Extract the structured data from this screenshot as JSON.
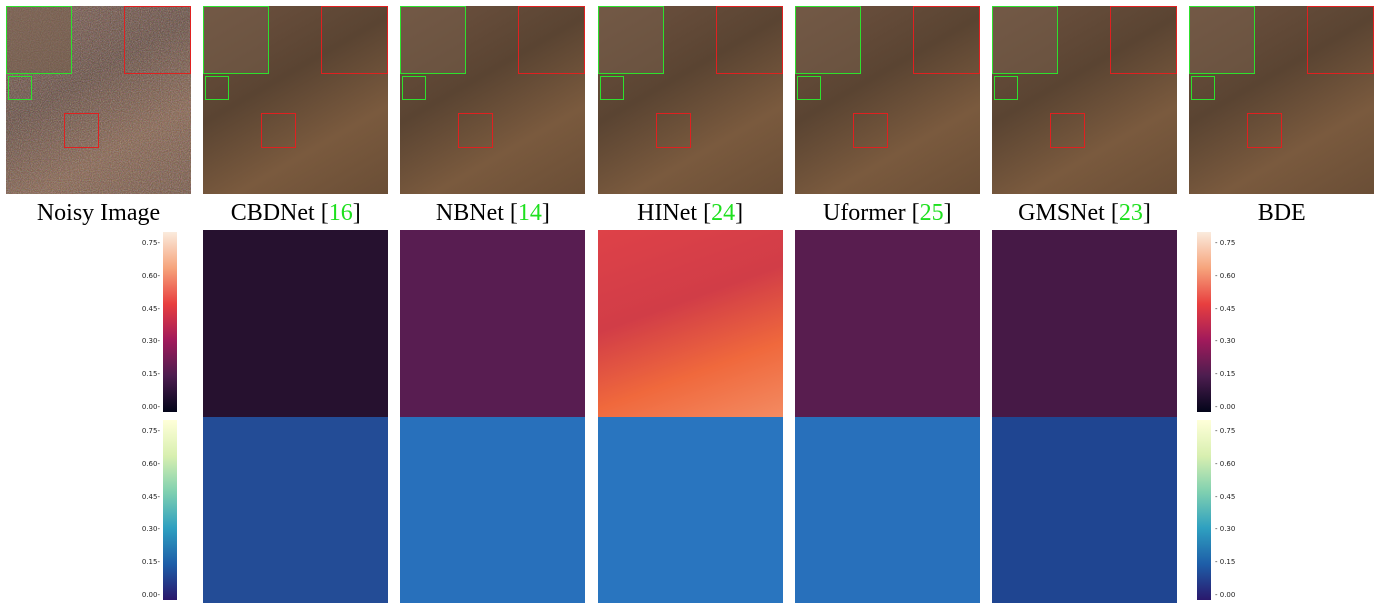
{
  "captions": [
    [
      "Noisy Image"
    ],
    [
      "CBDNet [",
      "16",
      "]"
    ],
    [
      "NBNet [",
      "14",
      "]"
    ],
    [
      "HINet [",
      "24",
      "]"
    ],
    [
      "Uformer [",
      "25",
      "]"
    ],
    [
      "GMSNet [",
      "23",
      "]"
    ],
    [
      "BDE"
    ]
  ],
  "colorbar_ticks": [
    "0.75",
    "0.60",
    "0.45",
    "0.30",
    "0.15",
    "0.00"
  ]
}
